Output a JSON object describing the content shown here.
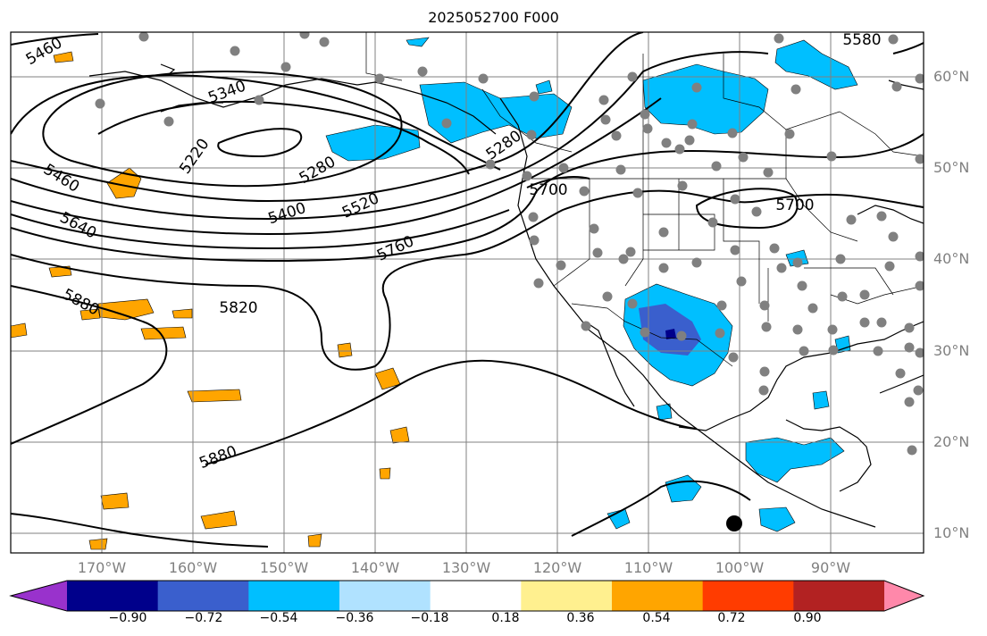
{
  "title": "2025052700 F000",
  "lat_labels": [
    "60°N",
    "50°N",
    "40°N",
    "30°N",
    "20°N",
    "10°N"
  ],
  "lon_labels": [
    "170°W",
    "160°W",
    "150°W",
    "140°W",
    "130°W",
    "120°W",
    "110°W",
    "100°W",
    "90°W"
  ],
  "contour_labels": [
    "5460",
    "5340",
    "5220",
    "5280",
    "5400",
    "5520",
    "5640",
    "5460",
    "5760",
    "5820",
    "5880",
    "5880",
    "5700",
    "5700",
    "5580",
    "5280"
  ],
  "colorbar": {
    "tick_labels": [
      "−0.90",
      "−0.72",
      "−0.54",
      "−0.36",
      "−0.18",
      "0.18",
      "0.36",
      "0.54",
      "0.72",
      "0.90"
    ],
    "colors": [
      "#9932cc",
      "#00008b",
      "#3a5fcd",
      "#00bfff",
      "#b0e2ff",
      "#ffffff",
      "#fff08f",
      "#ffa500",
      "#ff3c00",
      "#b22222",
      "#ff88aa"
    ]
  }
}
